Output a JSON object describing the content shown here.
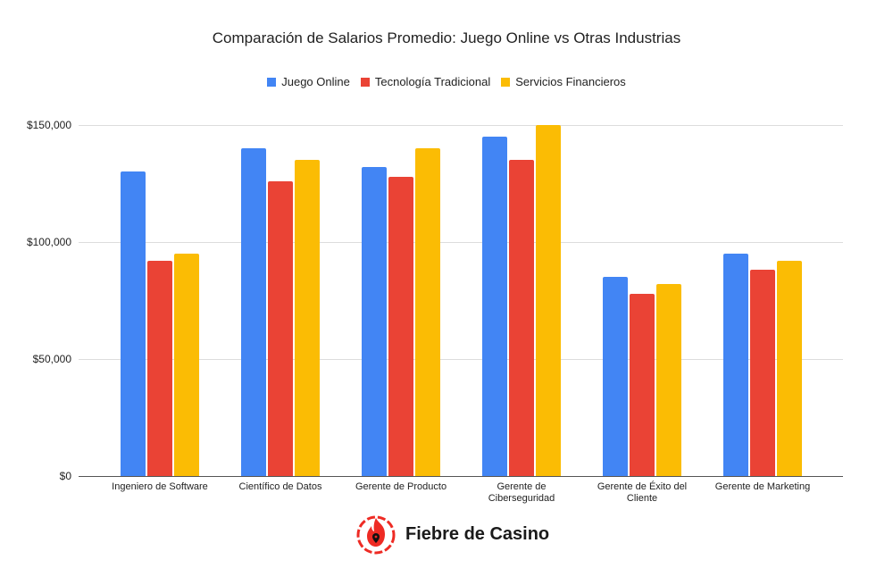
{
  "chart_data": {
    "type": "bar",
    "title": "Comparación de Salarios Promedio: Juego Online vs Otras Industrias",
    "xlabel": "",
    "ylabel": "",
    "categories": [
      "Ingeniero de Software",
      "Científico de Datos",
      "Gerente de Producto",
      "Gerente de Ciberseguridad",
      "Gerente de Éxito del Cliente",
      "Gerente de Marketing"
    ],
    "series": [
      {
        "name": "Juego Online",
        "color": "#4285F4",
        "values": [
          130000,
          140000,
          132000,
          145000,
          85000,
          95000
        ]
      },
      {
        "name": "Tecnología Tradicional",
        "color": "#EA4335",
        "values": [
          92000,
          126000,
          128000,
          135000,
          78000,
          88000
        ]
      },
      {
        "name": "Servicios Financieros",
        "color": "#FBBC04",
        "values": [
          95000,
          135000,
          140000,
          150000,
          82000,
          92000
        ]
      }
    ],
    "ylim": [
      0,
      150000
    ],
    "yticks": [
      0,
      50000,
      100000,
      150000
    ],
    "ytick_labels": [
      "$0",
      "$50,000",
      "$100,000",
      "$150,000"
    ],
    "grid": true,
    "legend_position": "top"
  },
  "xlabels_wrapped": [
    [
      "Ingeniero de Software"
    ],
    [
      "Científico de Datos"
    ],
    [
      "Gerente de Producto"
    ],
    [
      "Gerente de",
      "Ciberseguridad"
    ],
    [
      "Gerente de Éxito del",
      "Cliente"
    ],
    [
      "Gerente de Marketing"
    ]
  ],
  "brand": {
    "name": "Fiebre de Casino",
    "logo_icon": "flame-pin-icon",
    "color": "#EE2B24"
  }
}
